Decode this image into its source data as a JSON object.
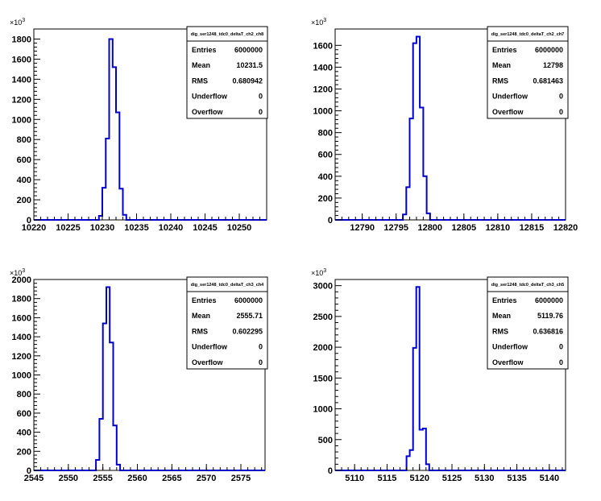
{
  "multiplier_label": "×10",
  "multiplier_exp": "3",
  "stats_labels": [
    "Entries",
    "Mean",
    "RMS",
    "Underflow",
    "Overflow"
  ],
  "chart_data": [
    {
      "type": "bar",
      "title": "dig_ser1248_tdc0_deltaT_ch2_ch8",
      "xlim": [
        10220,
        10254
      ],
      "xticks": [
        10220,
        10225,
        10230,
        10235,
        10240,
        10245,
        10250
      ],
      "ylim": [
        0,
        1900
      ],
      "yticks": [
        0,
        200,
        400,
        600,
        800,
        1000,
        1200,
        1400,
        1600,
        1800
      ],
      "y_unit_multiplier": 1000,
      "bin_width": 0.5,
      "bins": [
        [
          10229.5,
          40
        ],
        [
          10230.0,
          320
        ],
        [
          10230.5,
          810
        ],
        [
          10231.0,
          1800
        ],
        [
          10231.5,
          1520
        ],
        [
          10232.0,
          1070
        ],
        [
          10232.5,
          310
        ],
        [
          10233.0,
          50
        ]
      ],
      "stats": {
        "Entries": "6000000",
        "Mean": "10231.5",
        "RMS": "0.680942",
        "Underflow": "0",
        "Overflow": "0"
      }
    },
    {
      "type": "bar",
      "title": "dig_ser1248_tdc0_deltaT_ch2_ch7",
      "xlim": [
        12786,
        12820
      ],
      "xticks": [
        12790,
        12795,
        12800,
        12805,
        12810,
        12815,
        12820
      ],
      "ylim": [
        0,
        1750
      ],
      "yticks": [
        0,
        200,
        400,
        600,
        800,
        1000,
        1200,
        1400,
        1600
      ],
      "y_unit_multiplier": 1000,
      "bin_width": 0.5,
      "bins": [
        [
          12796.0,
          50
        ],
        [
          12796.5,
          300
        ],
        [
          12797.0,
          930
        ],
        [
          12797.5,
          1620
        ],
        [
          12798.0,
          1680
        ],
        [
          12798.5,
          1030
        ],
        [
          12799.0,
          400
        ],
        [
          12799.5,
          60
        ]
      ],
      "stats": {
        "Entries": "6000000",
        "Mean": "12798",
        "RMS": "0.681463",
        "Underflow": "0",
        "Overflow": "0"
      }
    },
    {
      "type": "bar",
      "title": "dig_ser1248_tdc0_deltaT_ch3_ch4",
      "xlim": [
        2545,
        2578.5
      ],
      "xticks": [
        2545,
        2550,
        2555,
        2560,
        2565,
        2570,
        2575
      ],
      "ylim": [
        0,
        2000
      ],
      "yticks": [
        0,
        200,
        400,
        600,
        800,
        1000,
        1200,
        1400,
        1600,
        1800,
        2000
      ],
      "y_unit_multiplier": 1000,
      "bin_width": 0.5,
      "bins": [
        [
          2554.0,
          110
        ],
        [
          2554.5,
          540
        ],
        [
          2555.0,
          1540
        ],
        [
          2555.5,
          1920
        ],
        [
          2556.0,
          1340
        ],
        [
          2556.5,
          470
        ],
        [
          2557.0,
          60
        ]
      ],
      "stats": {
        "Entries": "6000000",
        "Mean": "2555.71",
        "RMS": "0.602295",
        "Underflow": "0",
        "Overflow": "0"
      }
    },
    {
      "type": "bar",
      "title": "dig_ser1248_tdc0_deltaT_ch3_ch5",
      "xlim": [
        5107,
        5142.5
      ],
      "xticks": [
        5110,
        5115,
        5120,
        5125,
        5130,
        5135,
        5140
      ],
      "ylim": [
        0,
        3100
      ],
      "yticks": [
        0,
        500,
        1000,
        1500,
        2000,
        2500,
        3000
      ],
      "y_unit_multiplier": 1000,
      "bin_width": 0.5,
      "bins": [
        [
          5118.0,
          230
        ],
        [
          5118.5,
          330
        ],
        [
          5119.0,
          1990
        ],
        [
          5119.5,
          2980
        ],
        [
          5120.0,
          660
        ],
        [
          5120.5,
          680
        ],
        [
          5121.0,
          100
        ]
      ],
      "stats": {
        "Entries": "6000000",
        "Mean": "5119.76",
        "RMS": "0.636816",
        "Underflow": "0",
        "Overflow": "0"
      }
    }
  ]
}
